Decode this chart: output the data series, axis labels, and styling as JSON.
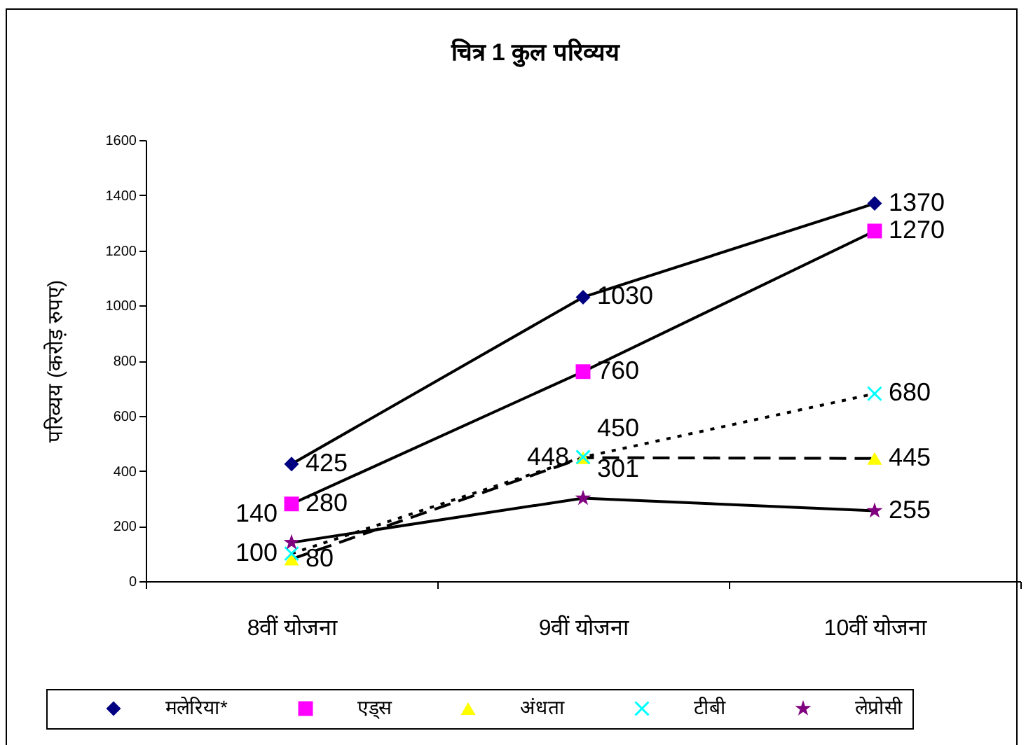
{
  "chart_data": {
    "type": "line",
    "title": "चित्र 1 कुल परिव्यय",
    "ylabel": "परिव्यय (करोड़ रुपए)",
    "categories": [
      "8वीं योजना",
      "9वीं योजना",
      "10वीं योजना"
    ],
    "series": [
      {
        "name": "मलेरिया*",
        "color": "#000080",
        "marker": "diamond",
        "line_style": "solid",
        "values": [
          425,
          1030,
          1370
        ]
      },
      {
        "name": "एड्स",
        "color": "#ff00ff",
        "marker": "square",
        "line_style": "solid",
        "values": [
          280,
          760,
          1270
        ]
      },
      {
        "name": "अंधता",
        "color": "#ffff00",
        "marker": "triangle",
        "line_style": "dashed",
        "values": [
          80,
          448,
          445
        ]
      },
      {
        "name": "टीबी",
        "color": "#00ffff",
        "marker": "cross",
        "line_style": "dotted",
        "values": [
          100,
          450,
          680
        ]
      },
      {
        "name": "लेप्रोसी",
        "color": "#800080",
        "marker": "star",
        "line_style": "solid",
        "values": [
          140,
          301,
          255
        ]
      }
    ],
    "ylim": [
      0,
      1600
    ],
    "yticks": [
      0,
      200,
      400,
      600,
      800,
      1000,
      1200,
      1400,
      1600
    ],
    "grid": false,
    "legend": "bottom",
    "data_labels": true
  }
}
